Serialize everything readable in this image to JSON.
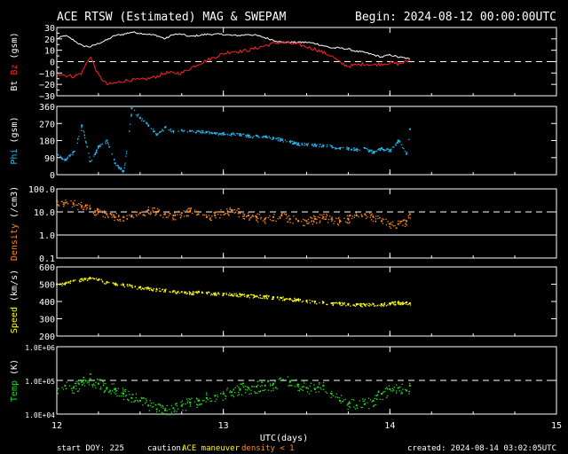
{
  "header": {
    "title": "ACE RTSW (Estimated) MAG & SWEPAM",
    "begin": "Begin: 2024-08-12 00:00:00UTC"
  },
  "footer": {
    "start_doy": "start DOY: 225",
    "caution": "caution:",
    "maneuver": "ACE maneuver",
    "density_note": "density < 1",
    "created": "created: 2024-08-14 03:02:05UTC"
  },
  "colors": {
    "bt": "#ffffff",
    "bz": "#ff2020",
    "phi": "#22b8f0",
    "density": "#ff8c1a",
    "speed": "#ffff00",
    "temp": "#22dd22",
    "maneuver": "#ffff00",
    "density_note": "#ff8c1a"
  },
  "chart_data": [
    {
      "type": "line",
      "id": "mag",
      "ylabel_parts": [
        "Bt",
        "Bz",
        "(gsm)"
      ],
      "ylim": [
        -30,
        30
      ],
      "yticks": [
        30,
        20,
        10,
        0,
        -10,
        -20,
        -30
      ],
      "ytick_labels": [
        "30",
        "20",
        "10",
        "0",
        "−10",
        "−20",
        "−30"
      ],
      "dashed_ref": [
        0
      ],
      "series": [
        {
          "name": "Bt",
          "x": [
            12.0,
            12.05,
            12.1,
            12.15,
            12.2,
            12.25,
            12.3,
            12.35,
            12.4,
            12.45,
            12.5,
            12.55,
            12.6,
            12.65,
            12.7,
            12.75,
            12.8,
            12.85,
            12.9,
            12.95,
            13.0,
            13.05,
            13.1,
            13.15,
            13.2,
            13.25,
            13.3,
            13.35,
            13.4,
            13.45,
            13.5,
            13.55,
            13.6,
            13.65,
            13.7,
            13.75,
            13.8,
            13.85,
            13.9,
            13.95,
            14.0,
            14.05,
            14.1,
            14.12
          ],
          "y": [
            20,
            23,
            19,
            14,
            13,
            16,
            19,
            23,
            24,
            26,
            25,
            24,
            23,
            20,
            24,
            24,
            22,
            23,
            24,
            24,
            24,
            23,
            23,
            24,
            23,
            21,
            19,
            17,
            17,
            17,
            17,
            16,
            14,
            12,
            12,
            11,
            9,
            8,
            6,
            4,
            6,
            4,
            3,
            2
          ]
        },
        {
          "name": "Bz",
          "x": [
            12.0,
            12.05,
            12.1,
            12.15,
            12.2,
            12.25,
            12.3,
            12.35,
            12.4,
            12.45,
            12.5,
            12.55,
            12.6,
            12.65,
            12.7,
            12.75,
            12.8,
            12.85,
            12.9,
            12.95,
            13.0,
            13.05,
            13.1,
            13.15,
            13.2,
            13.25,
            13.3,
            13.35,
            13.4,
            13.45,
            13.5,
            13.55,
            13.6,
            13.65,
            13.7,
            13.75,
            13.8,
            13.85,
            13.9,
            13.95,
            14.0,
            14.05,
            14.1,
            14.12
          ],
          "y": [
            -10,
            -12,
            -13,
            -10,
            5,
            -12,
            -20,
            -19,
            -17,
            -16,
            -16,
            -15,
            -13,
            -10,
            -10,
            -10,
            -6,
            -2,
            1,
            4,
            7,
            9,
            9,
            10,
            12,
            14,
            16,
            17,
            16,
            15,
            13,
            11,
            8,
            5,
            -1,
            -4,
            -3,
            -2,
            -3,
            -2,
            -1,
            -2,
            0,
            2
          ]
        }
      ]
    },
    {
      "type": "scatter",
      "id": "phi",
      "ylabel_parts": [
        "Phi",
        "(gsm)"
      ],
      "ylim": [
        0,
        360
      ],
      "yticks": [
        360,
        270,
        180,
        90,
        0
      ],
      "ytick_labels": [
        "360",
        "270",
        "180",
        "90",
        "0"
      ],
      "series": [
        {
          "name": "Phi",
          "x": [
            12.0,
            12.05,
            12.1,
            12.15,
            12.2,
            12.25,
            12.3,
            12.35,
            12.4,
            12.45,
            12.5,
            12.55,
            12.6,
            12.65,
            12.7,
            12.75,
            12.8,
            12.85,
            12.9,
            12.95,
            13.0,
            13.05,
            13.1,
            13.15,
            13.2,
            13.25,
            13.3,
            13.35,
            13.4,
            13.45,
            13.5,
            13.55,
            13.6,
            13.65,
            13.7,
            13.75,
            13.8,
            13.85,
            13.9,
            13.95,
            14.0,
            14.05,
            14.1,
            14.12
          ],
          "y": [
            110,
            80,
            120,
            260,
            70,
            150,
            180,
            60,
            20,
            350,
            300,
            260,
            210,
            250,
            230,
            235,
            230,
            230,
            225,
            220,
            220,
            215,
            215,
            205,
            205,
            200,
            195,
            185,
            175,
            165,
            160,
            160,
            155,
            150,
            140,
            140,
            135,
            140,
            120,
            140,
            130,
            180,
            110,
            240
          ]
        }
      ]
    },
    {
      "type": "scatter",
      "id": "density",
      "ylabel_parts": [
        "Density",
        "(/cm3)"
      ],
      "yscale": "log",
      "ylim": [
        0.1,
        100
      ],
      "yticks": [
        100,
        10,
        1,
        0.1
      ],
      "ytick_labels": [
        "100.0",
        "10.0",
        "1.0",
        "0.1"
      ],
      "dashed_ref": [
        10
      ],
      "solid_ref": [
        1
      ],
      "series": [
        {
          "name": "Density",
          "x": [
            12.0,
            12.05,
            12.1,
            12.15,
            12.2,
            12.25,
            12.3,
            12.35,
            12.4,
            12.45,
            12.5,
            12.55,
            12.6,
            12.65,
            12.7,
            12.75,
            12.8,
            12.85,
            12.9,
            12.95,
            13.0,
            13.05,
            13.1,
            13.15,
            13.2,
            13.25,
            13.3,
            13.35,
            13.4,
            13.45,
            13.5,
            13.55,
            13.6,
            13.65,
            13.7,
            13.75,
            13.8,
            13.85,
            13.9,
            13.95,
            14.0,
            14.05,
            14.1,
            14.12
          ],
          "y": [
            30,
            25,
            22,
            18,
            14,
            10,
            8,
            6,
            6,
            7,
            9,
            12,
            10,
            8,
            7,
            9,
            11,
            8,
            6,
            7,
            10,
            12,
            9,
            7,
            6,
            5,
            6,
            7,
            5,
            4,
            4,
            5,
            6,
            5,
            4,
            5,
            7,
            8,
            6,
            4,
            3,
            3,
            4,
            8
          ]
        }
      ]
    },
    {
      "type": "scatter",
      "id": "speed",
      "ylabel_parts": [
        "Speed",
        "(km/s)"
      ],
      "ylim": [
        200,
        600
      ],
      "yticks": [
        600,
        500,
        400,
        300,
        200
      ],
      "ytick_labels": [
        "600",
        "500",
        "400",
        "300",
        "200"
      ],
      "series": [
        {
          "name": "Speed",
          "x": [
            12.0,
            12.05,
            12.1,
            12.15,
            12.2,
            12.25,
            12.3,
            12.35,
            12.4,
            12.45,
            12.5,
            12.55,
            12.6,
            12.65,
            12.7,
            12.75,
            12.8,
            12.85,
            12.9,
            12.95,
            13.0,
            13.05,
            13.1,
            13.15,
            13.2,
            13.25,
            13.3,
            13.35,
            13.4,
            13.45,
            13.5,
            13.55,
            13.6,
            13.65,
            13.7,
            13.75,
            13.8,
            13.85,
            13.9,
            13.95,
            14.0,
            14.05,
            14.1,
            14.12
          ],
          "y": [
            500,
            505,
            520,
            530,
            535,
            525,
            510,
            500,
            495,
            490,
            480,
            475,
            470,
            465,
            460,
            455,
            450,
            455,
            450,
            445,
            445,
            440,
            440,
            435,
            430,
            430,
            425,
            420,
            415,
            410,
            405,
            400,
            395,
            390,
            390,
            385,
            385,
            380,
            385,
            385,
            390,
            395,
            395,
            390
          ]
        }
      ]
    },
    {
      "type": "scatter",
      "id": "temp",
      "ylabel_parts": [
        "Temp",
        "(K)"
      ],
      "yscale": "log",
      "ylim": [
        10000,
        1000000
      ],
      "yticks": [
        1000000,
        100000,
        10000
      ],
      "ytick_labels": [
        "1.0E+06",
        "1.0E+05",
        "1.0E+04"
      ],
      "dashed_ref": [
        100000
      ],
      "series": [
        {
          "name": "Temp",
          "x": [
            12.0,
            12.05,
            12.1,
            12.15,
            12.2,
            12.25,
            12.3,
            12.35,
            12.4,
            12.45,
            12.5,
            12.55,
            12.6,
            12.65,
            12.7,
            12.75,
            12.8,
            12.85,
            12.9,
            12.95,
            13.0,
            13.05,
            13.1,
            13.15,
            13.2,
            13.25,
            13.3,
            13.35,
            13.4,
            13.45,
            13.5,
            13.55,
            13.6,
            13.65,
            13.7,
            13.75,
            13.8,
            13.85,
            13.9,
            13.95,
            14.0,
            14.05,
            14.1,
            14.12
          ],
          "y": [
            50000,
            70000,
            60000,
            90000,
            110000,
            80000,
            60000,
            55000,
            40000,
            30000,
            25000,
            18000,
            14000,
            13000,
            15000,
            18000,
            22000,
            25000,
            30000,
            35000,
            40000,
            45000,
            55000,
            60000,
            65000,
            70000,
            80000,
            100000,
            90000,
            75000,
            60000,
            55000,
            70000,
            40000,
            25000,
            20000,
            18000,
            20000,
            25000,
            40000,
            55000,
            60000,
            50000,
            70000
          ]
        }
      ]
    }
  ],
  "xaxis": {
    "range": [
      12,
      15
    ],
    "ticks": [
      12,
      13,
      14,
      15
    ],
    "tick_labels": [
      "12",
      "13",
      "14",
      "15"
    ],
    "label": "UTC(days)"
  }
}
